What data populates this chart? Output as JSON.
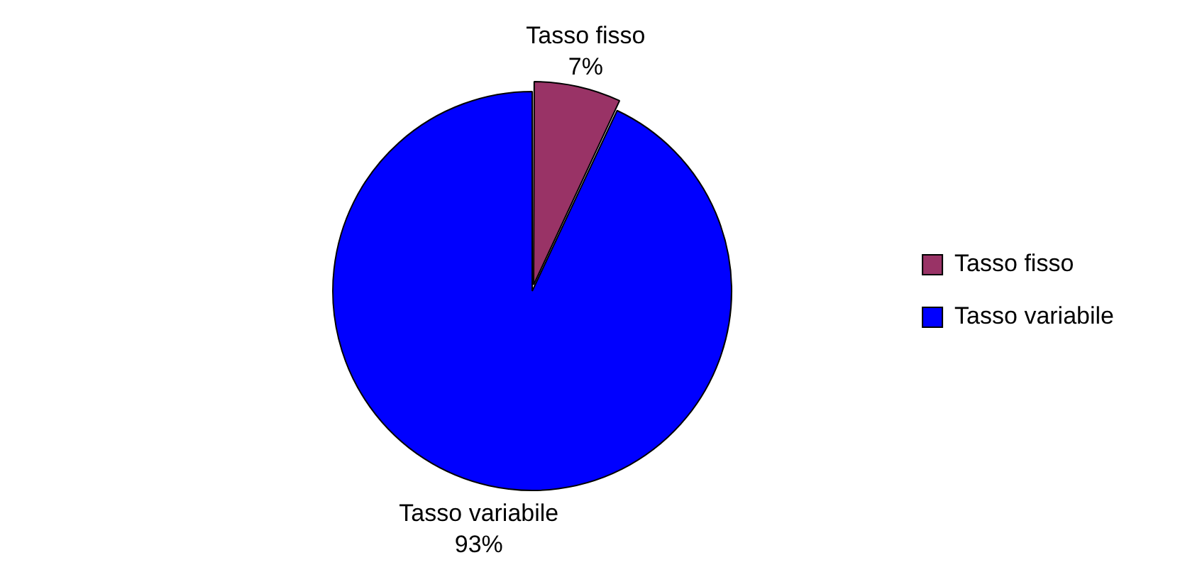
{
  "chart_data": {
    "type": "pie",
    "categories": [
      "Tasso fisso",
      "Tasso variabile"
    ],
    "values": [
      7,
      93
    ],
    "colors": [
      "#993366",
      "#0000ff"
    ],
    "value_labels": [
      "7%",
      "93%"
    ],
    "legend": "right"
  }
}
